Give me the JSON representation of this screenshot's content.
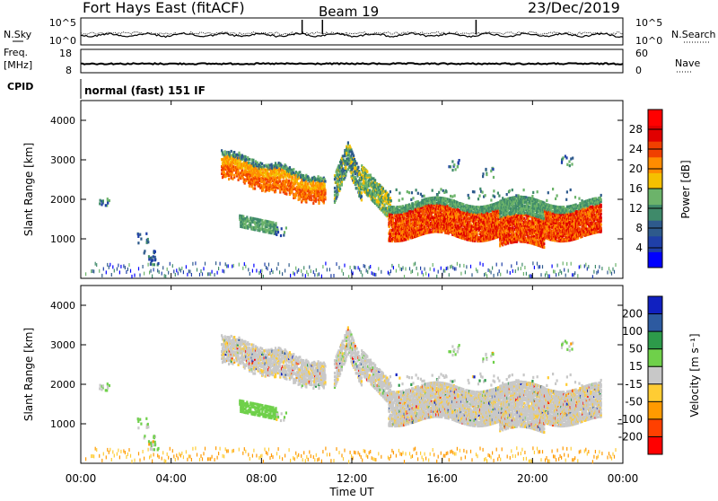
{
  "header": {
    "station": "Fort Hays East (fitACF)",
    "beam": "Beam 19",
    "date": "23/Dec/2019"
  },
  "top_labels": {
    "nsky": "N.Sky",
    "freq_line1": "Freq.",
    "freq_line2": "[MHz]",
    "cpid": "CPID",
    "nsearch": "N.Search",
    "nave": "Nave",
    "nsky_ticks": [
      "10^5",
      "10^0"
    ],
    "freq_ticks": [
      "18",
      "8"
    ],
    "nave_ticks": [
      "60",
      "0"
    ],
    "cpid_text": "normal (fast) 151 IF"
  },
  "colors": {
    "power": [
      "#0000ff",
      "#1f3fa8",
      "#2e5a8c",
      "#3f8a6a",
      "#6cb36a",
      "#f5c000",
      "#ff8c00",
      "#f04000",
      "#e00000",
      "#ff0000"
    ],
    "velocity": [
      "#ff0000",
      "#ff4000",
      "#ff9a00",
      "#ffcc33",
      "#c8c8c8",
      "#6fd04a",
      "#2d9a4a",
      "#2d5aa0",
      "#1020c0"
    ]
  },
  "chart_data": [
    {
      "type": "heatmap",
      "name": "power",
      "ylabel": "Slant Range [km]",
      "yticks": [
        "1000",
        "2000",
        "3000",
        "4000"
      ],
      "ylim": [
        0,
        4500
      ],
      "colorbar_label": "Power [dB]",
      "colorbar_ticks": [
        "4",
        "8",
        "12",
        "16",
        "20",
        "24",
        "28"
      ],
      "xlim": [
        0,
        24
      ],
      "echo_regions": [
        {
          "t_start": 6.2,
          "t_end": 10.8,
          "range_top": 3200,
          "range_bottom": 2200,
          "dominant_db": 20
        },
        {
          "t_start": 11.5,
          "t_end": 12.2,
          "range_top": 3600,
          "range_bottom": 2600,
          "dominant_db": 16
        },
        {
          "t_start": 13.5,
          "t_end": 23.0,
          "range_top": 2000,
          "range_bottom": 1000,
          "dominant_db": 24
        },
        {
          "t_start": 7.0,
          "t_end": 8.5,
          "range_top": 1600,
          "range_bottom": 1300,
          "dominant_db": 12
        }
      ]
    },
    {
      "type": "heatmap",
      "name": "velocity",
      "ylabel": "Slant Range [km]",
      "yticks": [
        "1000",
        "2000",
        "3000",
        "4000"
      ],
      "ylim": [
        0,
        4500
      ],
      "colorbar_label": "Velocity [m s⁻¹]",
      "colorbar_ticks": [
        "200",
        "100",
        "50",
        "15",
        "-15",
        "-50",
        "-100",
        "-200"
      ],
      "xlabel": "Time UT",
      "xticks": [
        "00:00",
        "04:00",
        "08:00",
        "12:00",
        "16:00",
        "20:00",
        "00:00"
      ],
      "xlim": [
        0,
        24
      ]
    }
  ]
}
